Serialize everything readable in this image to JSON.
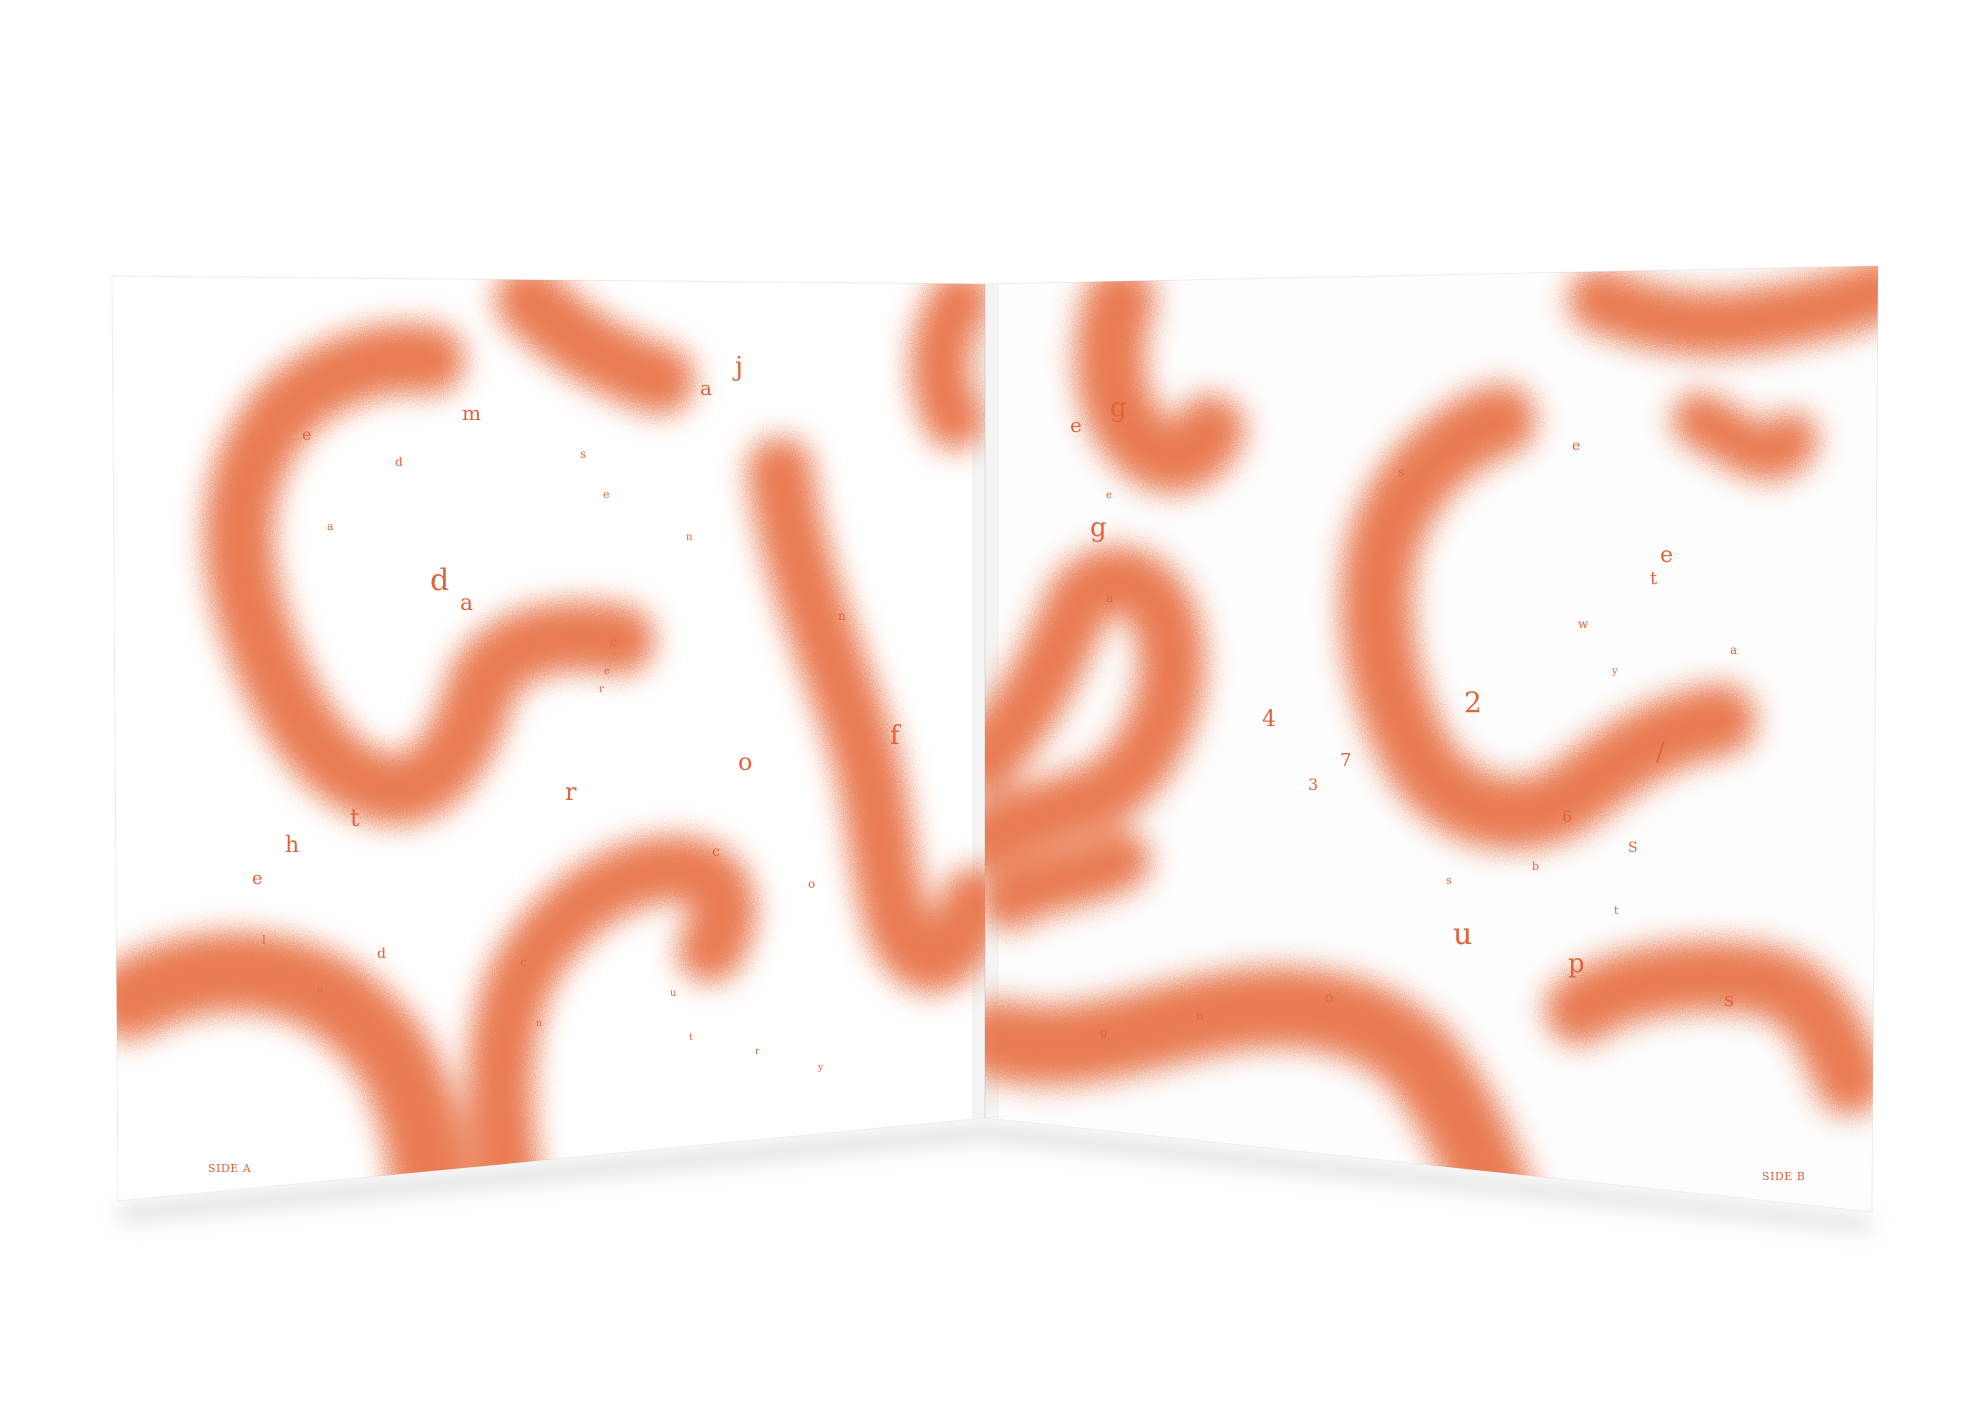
{
  "colors": {
    "accent": "#e8744a",
    "paper": "#ffffff",
    "shadow": "#d8d8d8"
  },
  "left_panel": {
    "side_label": "SIDE A",
    "letters": [
      "e",
      "m",
      "a",
      "j",
      "s",
      "d",
      "e",
      "a",
      "n",
      "d",
      "a",
      "c",
      "e",
      "r",
      "n",
      "f",
      "o",
      "r",
      "t",
      "h",
      "e",
      "c",
      "o",
      "l",
      "d",
      "c",
      "u",
      "o",
      "n",
      "t",
      "r",
      "y"
    ]
  },
  "right_panel": {
    "side_label": "SIDE B",
    "letters": [
      "e",
      "g",
      "e",
      "g",
      "s",
      "e",
      "a",
      "t",
      "e",
      "w",
      "y",
      "a",
      "4",
      "2",
      "/",
      "3",
      "7",
      "6",
      "S",
      "s",
      "b",
      "t",
      "u",
      "p",
      "s",
      "g",
      "n",
      "o"
    ]
  }
}
